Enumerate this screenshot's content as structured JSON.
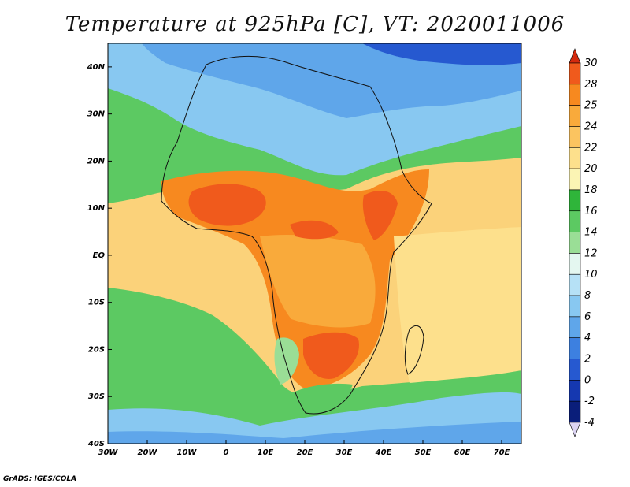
{
  "title": "Temperature at 925hPa [C], VT: 2020011006",
  "credit": "GrADS: IGES/COLA",
  "map": {
    "lon_range": [
      -30,
      75
    ],
    "lat_range": [
      -40,
      45
    ],
    "lon_labels": [
      {
        "lon": -30,
        "text": "30W"
      },
      {
        "lon": -20,
        "text": "20W"
      },
      {
        "lon": -10,
        "text": "10W"
      },
      {
        "lon": 0,
        "text": "0"
      },
      {
        "lon": 10,
        "text": "10E"
      },
      {
        "lon": 20,
        "text": "20E"
      },
      {
        "lon": 30,
        "text": "30E"
      },
      {
        "lon": 40,
        "text": "40E"
      },
      {
        "lon": 50,
        "text": "50E"
      },
      {
        "lon": 60,
        "text": "60E"
      },
      {
        "lon": 70,
        "text": "70E"
      }
    ],
    "lat_labels": [
      {
        "lat": 40,
        "text": "40N"
      },
      {
        "lat": 30,
        "text": "30N"
      },
      {
        "lat": 20,
        "text": "20N"
      },
      {
        "lat": 10,
        "text": "10N"
      },
      {
        "lat": 0,
        "text": "EQ"
      },
      {
        "lat": -10,
        "text": "10S"
      },
      {
        "lat": -20,
        "text": "20S"
      },
      {
        "lat": -30,
        "text": "30S"
      },
      {
        "lat": -40,
        "text": "40S"
      }
    ]
  },
  "colorbar": {
    "levels": [
      "30",
      "28",
      "25",
      "24",
      "22",
      "20",
      "18",
      "16",
      "14",
      "12",
      "10",
      "8",
      "6",
      "4",
      "2",
      "0",
      "-2",
      "-4"
    ],
    "colors_top_to_bottom": [
      "#d42a0e",
      "#f05a1c",
      "#f7891f",
      "#f9aa3b",
      "#fbc460",
      "#fde08c",
      "#fbf4b4",
      "#2fb53a",
      "#5cc962",
      "#9ade96",
      "#e4f7f0",
      "#b6e1f6",
      "#88c8f1",
      "#5fa6ea",
      "#3d80e0",
      "#2659d0",
      "#1538b0",
      "#0a1e7a",
      "#dcd4f3"
    ]
  },
  "regions": [
    {
      "name": "background-ocean",
      "color": "#fbd27a"
    },
    {
      "name": "southern-ocean-cool",
      "color": "#5cc962"
    },
    {
      "name": "southern-ocean-cold",
      "color": "#88c8f1"
    },
    {
      "name": "far-south-cold",
      "color": "#5fa6ea"
    },
    {
      "name": "north-atlantic-cool",
      "color": "#5cc962"
    },
    {
      "name": "north-cold",
      "color": "#88c8f1"
    },
    {
      "name": "north-colder",
      "color": "#5fa6ea"
    },
    {
      "name": "north-coldest",
      "color": "#2659d0"
    },
    {
      "name": "sahel-warm",
      "color": "#f7891f"
    },
    {
      "name": "west-africa-hot",
      "color": "#f05a1c"
    },
    {
      "name": "central-africa-warm",
      "color": "#f9aa3b"
    },
    {
      "name": "southern-africa-hot",
      "color": "#f05a1c"
    },
    {
      "name": "kalahari-cool",
      "color": "#9ade96"
    },
    {
      "name": "south-africa-cool",
      "color": "#5cc962"
    },
    {
      "name": "indian-ocean-warm",
      "color": "#fde08c"
    },
    {
      "name": "east-africa-hot",
      "color": "#f05a1c"
    }
  ]
}
